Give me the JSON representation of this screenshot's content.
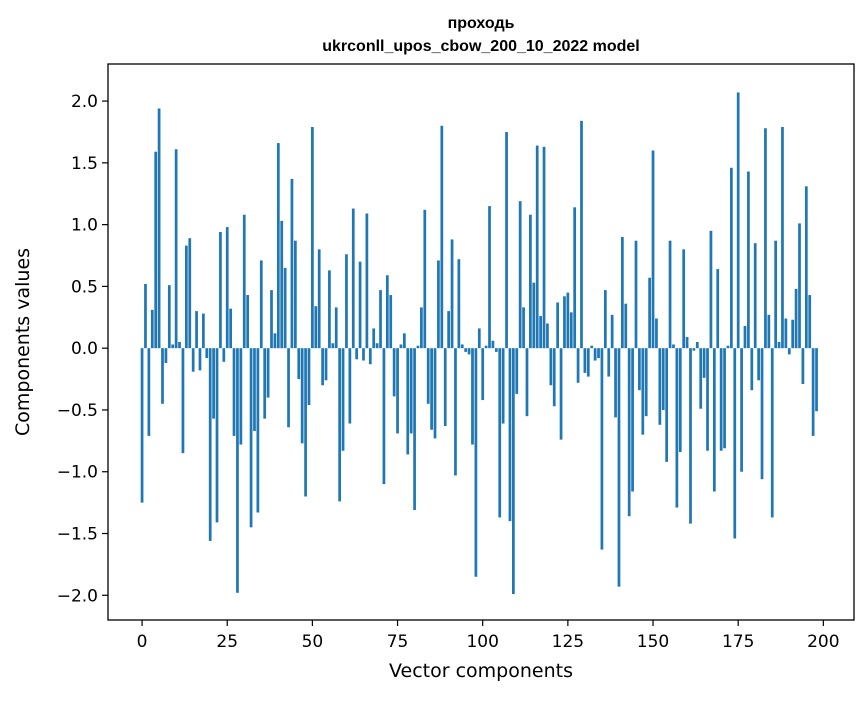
{
  "chart_data": {
    "type": "bar",
    "title_line1": "проходь",
    "title_line2": "ukrconll_upos_cbow_200_10_2022 model",
    "xlabel": "Vector components",
    "ylabel": "Components values",
    "xlim": [
      -10,
      209
    ],
    "ylim": [
      -2.2,
      2.3
    ],
    "xticks": [
      0,
      25,
      50,
      75,
      100,
      125,
      150,
      175,
      200
    ],
    "xtick_labels": [
      "0",
      "25",
      "50",
      "75",
      "100",
      "125",
      "150",
      "175",
      "200"
    ],
    "yticks": [
      2.0,
      1.5,
      1.0,
      0.5,
      0.0,
      -0.5,
      -1.0,
      -1.5,
      -2.0
    ],
    "ytick_labels": [
      "2.0",
      "1.5",
      "1.0",
      "0.5",
      "0.0",
      "−0.5",
      "−1.0",
      "−1.5",
      "−2.0"
    ],
    "grid": false,
    "bar_color": "#1f77b4",
    "x": "0..199",
    "values": [
      -1.25,
      0.52,
      -0.71,
      0.31,
      1.59,
      1.94,
      -0.45,
      -0.12,
      0.51,
      0.03,
      1.61,
      0.05,
      -0.85,
      0.83,
      0.89,
      -0.19,
      0.3,
      -0.18,
      0.28,
      -0.08,
      -1.56,
      -0.57,
      -1.41,
      0.94,
      -0.11,
      0.98,
      0.32,
      -0.71,
      -1.98,
      -0.78,
      1.08,
      0.43,
      -1.45,
      -0.67,
      -1.33,
      0.71,
      -0.57,
      -0.4,
      0.47,
      0.12,
      1.66,
      1.03,
      0.65,
      -0.64,
      1.37,
      0.87,
      -0.25,
      -0.77,
      -1.2,
      -0.46,
      1.79,
      0.34,
      0.8,
      -0.3,
      -0.26,
      0.63,
      0.04,
      0.33,
      -1.24,
      -0.83,
      0.76,
      -0.61,
      1.13,
      -0.09,
      0.7,
      -0.1,
      1.09,
      -0.13,
      0.16,
      0.04,
      0.47,
      -1.1,
      0.59,
      0.43,
      -0.39,
      -0.69,
      0.03,
      0.12,
      -0.86,
      -0.69,
      -1.31,
      0.02,
      0.33,
      1.12,
      -0.45,
      -0.66,
      -0.73,
      0.71,
      1.8,
      -0.63,
      0.3,
      0.88,
      -1.03,
      0.72,
      0.03,
      -0.03,
      -0.05,
      -0.78,
      -1.85,
      0.16,
      -0.42,
      0.02,
      1.15,
      0.06,
      -0.03,
      -1.37,
      -0.61,
      1.75,
      -1.4,
      -1.99,
      -0.37,
      1.19,
      0.33,
      -0.55,
      1.08,
      0.53,
      1.64,
      0.26,
      1.63,
      0.2,
      -0.3,
      -0.47,
      0.37,
      -0.74,
      0.42,
      0.45,
      0.29,
      1.14,
      -0.28,
      1.84,
      -0.2,
      -0.23,
      0.02,
      -0.1,
      -0.08,
      -1.63,
      0.47,
      -0.23,
      0.27,
      -0.56,
      -1.93,
      0.9,
      0.36,
      -1.36,
      -1.16,
      0.87,
      -0.34,
      -0.7,
      -0.55,
      0.57,
      1.6,
      0.24,
      -0.62,
      -0.5,
      -0.92,
      0.87,
      0.03,
      -1.29,
      -0.84,
      0.8,
      0.09,
      -1.42,
      -0.02,
      0.05,
      -0.49,
      -0.24,
      -0.83,
      0.95,
      -1.16,
      0.64,
      -0.83,
      -0.81,
      0.02,
      1.46,
      -1.54,
      2.07,
      -1.0,
      0.18,
      1.43,
      -0.34,
      0.85,
      -0.26,
      -1.06,
      1.78,
      0.27,
      -1.37,
      0.87,
      0.05,
      1.79,
      0.24,
      -0.05,
      0.23,
      0.48,
      1.01,
      -0.29,
      1.31,
      0.43,
      -0.71,
      -0.51
    ]
  }
}
